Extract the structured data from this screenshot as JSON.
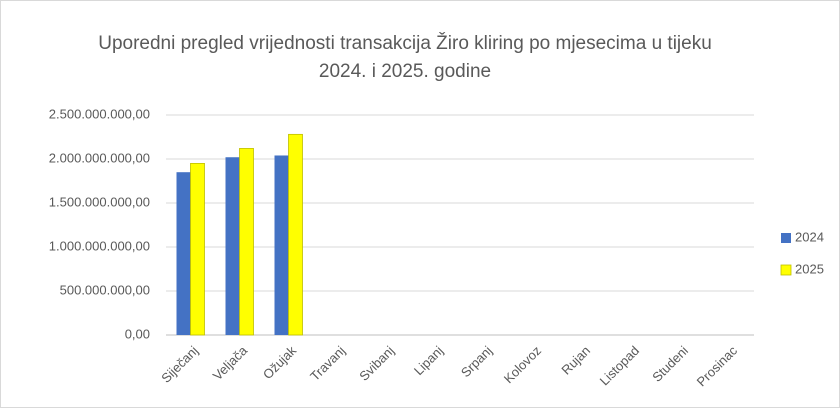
{
  "chart_data": {
    "type": "bar",
    "title": "Uporedni pregled vrijednosti transakcija Žiro kliring po mjesecima u tijeku 2024. i 2025. godine",
    "categories": [
      "Siječanj",
      "Veljača",
      "Ožujak",
      "Travanj",
      "Svibanj",
      "Lipanj",
      "Srpanj",
      "Kolovoz",
      "Rujan",
      "Listopad",
      "Studeni",
      "Prosinac"
    ],
    "series": [
      {
        "name": "2024",
        "color": "#4472c4",
        "values": [
          1850000000,
          2020000000,
          2040000000,
          null,
          null,
          null,
          null,
          null,
          null,
          null,
          null,
          null
        ]
      },
      {
        "name": "2025",
        "color": "#ffff00",
        "values": [
          1950000000,
          2120000000,
          2280000000,
          null,
          null,
          null,
          null,
          null,
          null,
          null,
          null,
          null
        ]
      }
    ],
    "ylim": [
      0,
      2500000000
    ],
    "yticks": [
      {
        "value": 0,
        "label": "0,00"
      },
      {
        "value": 500000000,
        "label": "500.000.000,00"
      },
      {
        "value": 1000000000,
        "label": "1.000.000.000,00"
      },
      {
        "value": 1500000000,
        "label": "1.500.000.000,00"
      },
      {
        "value": 2000000000,
        "label": "2.000.000.000,00"
      },
      {
        "value": 2500000000,
        "label": "2.500.000.000,00"
      }
    ],
    "grid": true,
    "legend": "right"
  }
}
